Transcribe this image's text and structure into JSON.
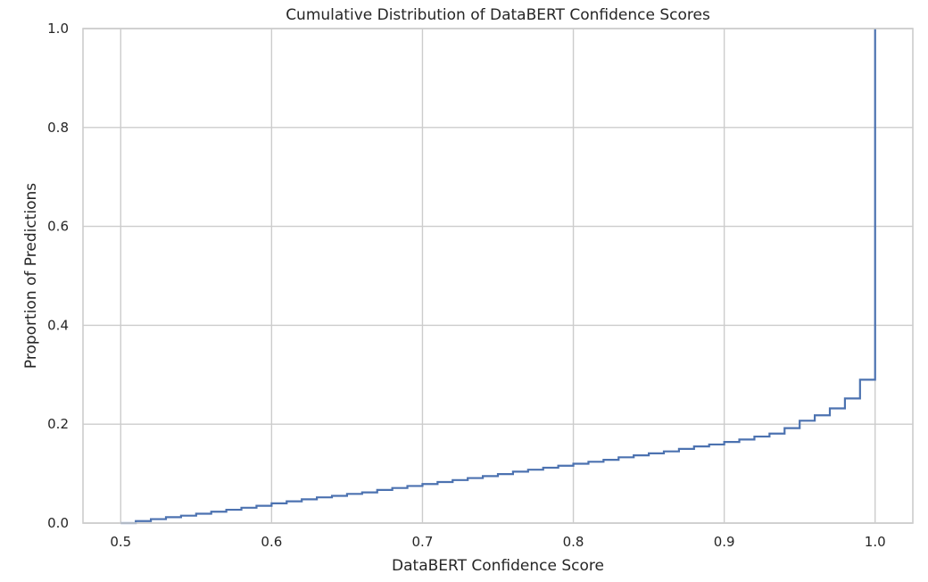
{
  "chart_data": {
    "type": "line",
    "step": true,
    "title": "Cumulative Distribution of DataBERT Confidence Scores",
    "xlabel": "DataBERT Confidence Score",
    "ylabel": "Proportion of Predictions",
    "xlim": [
      0.475,
      1.025
    ],
    "ylim": [
      0.0,
      1.0
    ],
    "grid": true,
    "xticks": [
      0.5,
      0.6,
      0.7,
      0.8,
      0.9,
      1.0
    ],
    "xtick_labels": [
      "0.5",
      "0.6",
      "0.7",
      "0.8",
      "0.9",
      "1.0"
    ],
    "yticks": [
      0.0,
      0.2,
      0.4,
      0.6,
      0.8,
      1.0
    ],
    "ytick_labels": [
      "0.0",
      "0.2",
      "0.4",
      "0.6",
      "0.8",
      "1.0"
    ],
    "series": [
      {
        "color": "#4c72b0",
        "x": [
          0.5,
          0.51,
          0.52,
          0.53,
          0.54,
          0.55,
          0.56,
          0.57,
          0.58,
          0.59,
          0.6,
          0.61,
          0.62,
          0.63,
          0.64,
          0.65,
          0.66,
          0.67,
          0.68,
          0.69,
          0.7,
          0.71,
          0.72,
          0.73,
          0.74,
          0.75,
          0.76,
          0.77,
          0.78,
          0.79,
          0.8,
          0.81,
          0.82,
          0.83,
          0.84,
          0.85,
          0.86,
          0.87,
          0.88,
          0.89,
          0.9,
          0.91,
          0.92,
          0.93,
          0.94,
          0.95,
          0.96,
          0.97,
          0.98,
          0.99,
          1.0
        ],
        "y": [
          0.0,
          0.004,
          0.008,
          0.012,
          0.015,
          0.019,
          0.023,
          0.027,
          0.031,
          0.035,
          0.04,
          0.044,
          0.048,
          0.052,
          0.055,
          0.059,
          0.062,
          0.067,
          0.071,
          0.075,
          0.079,
          0.083,
          0.087,
          0.091,
          0.095,
          0.099,
          0.104,
          0.108,
          0.112,
          0.116,
          0.12,
          0.124,
          0.128,
          0.133,
          0.137,
          0.141,
          0.145,
          0.15,
          0.155,
          0.159,
          0.164,
          0.169,
          0.175,
          0.181,
          0.192,
          0.207,
          0.218,
          0.232,
          0.252,
          0.29,
          0.391
        ],
        "final_y": 1.0
      }
    ]
  }
}
